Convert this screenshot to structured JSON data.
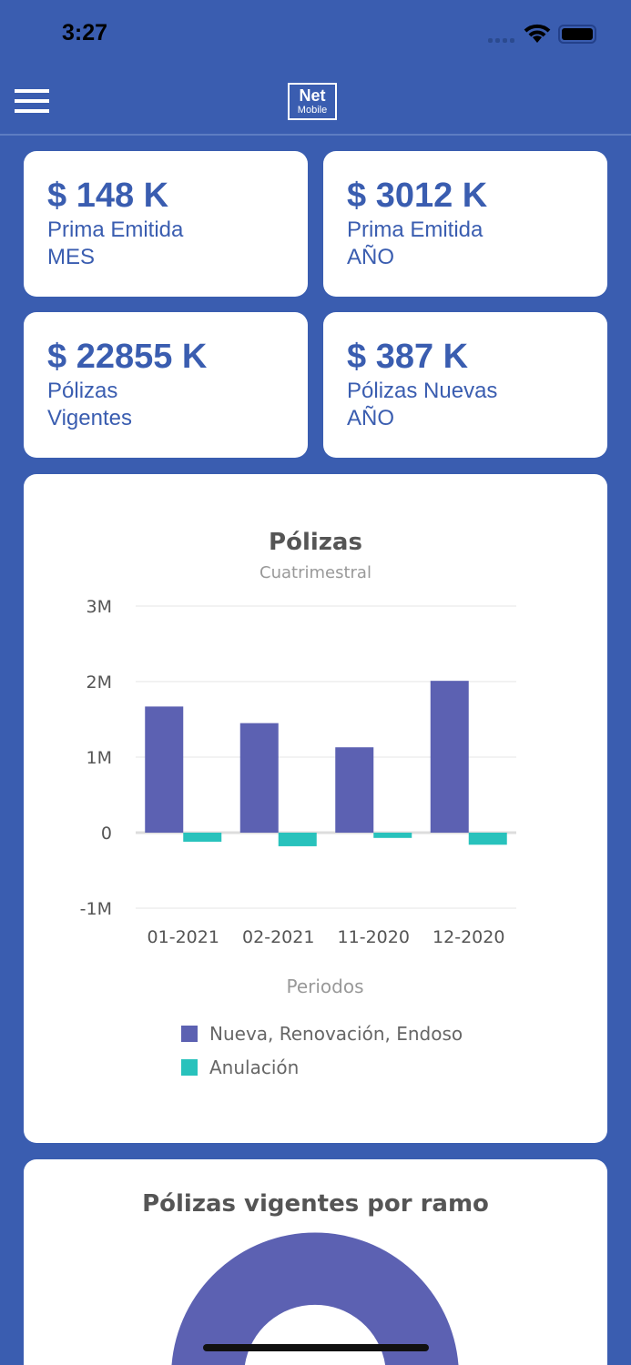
{
  "status": {
    "time": "3:27"
  },
  "header": {
    "logo_line1": "Net",
    "logo_line2": "Mobile"
  },
  "kpis": [
    {
      "value": "$ 148 K",
      "label1": "Prima Emitida",
      "label2": "MES"
    },
    {
      "value": "$ 3012 K",
      "label1": "Prima Emitida",
      "label2": "AÑO"
    },
    {
      "value": "$ 22855 K",
      "label1": "Pólizas",
      "label2": "Vigentes"
    },
    {
      "value": "$ 387 K",
      "label1": "Pólizas Nuevas",
      "label2": "AÑO"
    }
  ],
  "chart_data": {
    "type": "bar",
    "title": "Pólizas",
    "subtitle": "Cuatrimestral",
    "xlabel": "Periodos",
    "ylabel": "",
    "categories": [
      "01-2021",
      "02-2021",
      "11-2020",
      "12-2020"
    ],
    "yticks": [
      "3M",
      "2M",
      "1M",
      "0",
      "-1M"
    ],
    "ylim": [
      -1000000,
      3000000
    ],
    "grid": true,
    "legend": "bottom",
    "series": [
      {
        "name": "Nueva, Renovación, Endoso",
        "color": "#5c61b2",
        "values": [
          1670000,
          1450000,
          1130000,
          2010000
        ]
      },
      {
        "name": "Anulación",
        "color": "#28c2bc",
        "values": [
          -120000,
          -180000,
          -70000,
          -160000
        ]
      }
    ]
  },
  "donut": {
    "title": "Pólizas vigentes por ramo",
    "color": "#5c61b2"
  }
}
